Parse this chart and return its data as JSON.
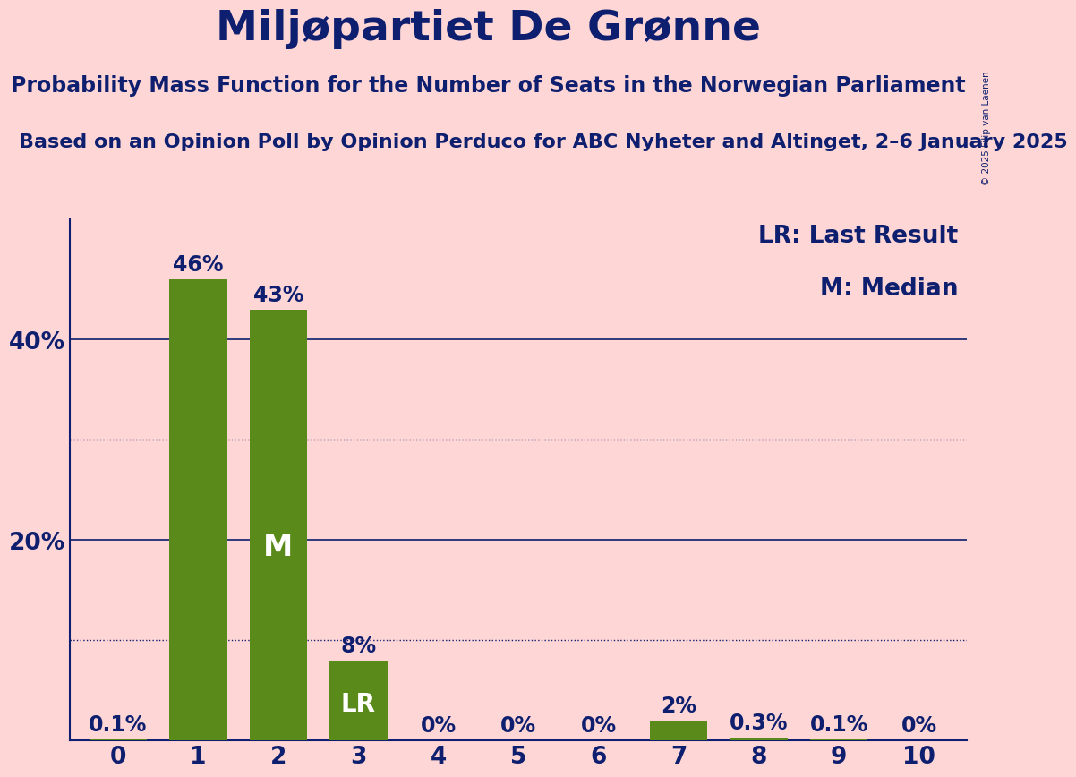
{
  "title": "Miljøpartiet De Grønne",
  "subtitle1": "Probability Mass Function for the Number of Seats in the Norwegian Parliament",
  "subtitle2": "Based on an Opinion Poll by Opinion Perduco for ABC Nyheter and Altinget, 2–6 January 2025",
  "categories": [
    0,
    1,
    2,
    3,
    4,
    5,
    6,
    7,
    8,
    9,
    10
  ],
  "values": [
    0.001,
    0.46,
    0.43,
    0.08,
    0.0,
    0.0,
    0.0,
    0.02,
    0.003,
    0.001,
    0.0
  ],
  "bar_color": "#5a8a1a",
  "background_color": "#ffd6d6",
  "text_color": "#0d1f6e",
  "bar_labels": [
    "0.1%",
    "46%",
    "43%",
    "8%",
    "0%",
    "0%",
    "0%",
    "2%",
    "0.3%",
    "0.1%",
    "0%"
  ],
  "median_bar": 2,
  "lr_bar": 3,
  "ysolid": [
    0.0,
    0.2,
    0.4
  ],
  "ydotted": [
    0.1,
    0.3
  ],
  "ylim": [
    0,
    0.52
  ],
  "legend_lr": "LR: Last Result",
  "legend_m": "M: Median",
  "copyright": "© 2025 Filip van Laenen",
  "title_fontsize": 34,
  "subtitle1_fontsize": 17,
  "subtitle2_fontsize": 16,
  "label_fontsize": 17,
  "tick_fontsize": 19,
  "legend_fontsize": 19,
  "inside_label_fontsize": 24,
  "copyright_fontsize": 7.5
}
